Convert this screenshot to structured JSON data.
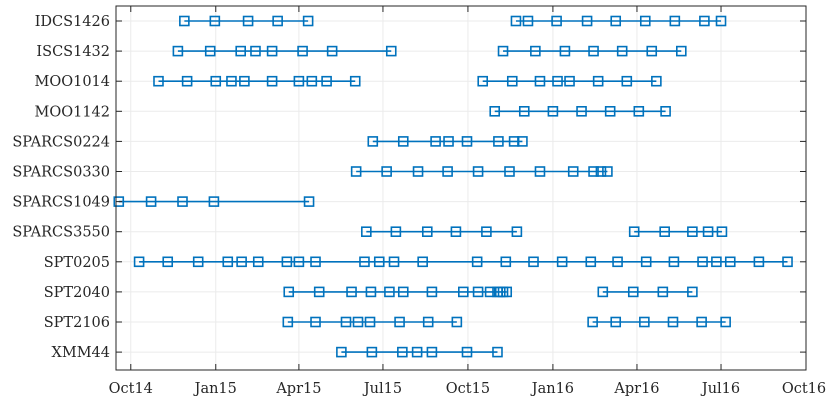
{
  "chart_data": {
    "type": "timeline",
    "title": "",
    "xlabel": "",
    "ylabel": "",
    "x_ticks": [
      "Oct14",
      "Jan15",
      "Apr15",
      "Jul15",
      "Oct15",
      "Jan16",
      "Apr16",
      "Jul16",
      "Oct16"
    ],
    "xlim": [
      "2014-09-15",
      "2016-10-01"
    ],
    "grid": true,
    "line_color": "#0072BD",
    "background_color": "#ffffff",
    "axis_color": "#262626",
    "grid_color": "#ebebeb",
    "marker": "open-square",
    "series": [
      {
        "name": "IDCS1426",
        "segments": [
          [
            "2014-11-28",
            "2014-12-31",
            "2015-02-05",
            "2015-03-09",
            "2015-04-11"
          ],
          [
            "2015-11-22",
            "2015-12-05",
            "2016-01-05",
            "2016-02-07",
            "2016-03-09",
            "2016-04-10",
            "2016-05-12",
            "2016-06-13",
            "2016-07-01"
          ]
        ]
      },
      {
        "name": "ISCS1432",
        "segments": [
          [
            "2014-11-21",
            "2014-12-26",
            "2015-01-28",
            "2015-02-13",
            "2015-03-03",
            "2015-04-05",
            "2015-05-07",
            "2015-07-10"
          ],
          [
            "2015-11-08",
            "2015-12-13",
            "2016-01-14",
            "2016-02-14",
            "2016-03-16",
            "2016-04-17",
            "2016-05-19"
          ]
        ]
      },
      {
        "name": "MOO1014",
        "segments": [
          [
            "2014-10-31",
            "2014-12-01",
            "2015-01-01",
            "2015-01-18",
            "2015-02-01",
            "2015-03-03",
            "2015-04-01",
            "2015-04-15",
            "2015-05-01",
            "2015-06-01"
          ],
          [
            "2015-10-17",
            "2015-11-18",
            "2015-12-18",
            "2016-01-06",
            "2016-01-19",
            "2016-02-19",
            "2016-03-21",
            "2016-04-22"
          ]
        ]
      },
      {
        "name": "MOO1142",
        "segments": [
          [
            "2015-10-30",
            "2015-12-01",
            "2016-01-01",
            "2016-02-01",
            "2016-03-03",
            "2016-04-03",
            "2016-05-02"
          ]
        ]
      },
      {
        "name": "SPARCS0224",
        "segments": [
          [
            "2015-06-20",
            "2015-07-23",
            "2015-08-27",
            "2015-09-10",
            "2015-09-30",
            "2015-11-03",
            "2015-11-20",
            "2015-11-29"
          ]
        ]
      },
      {
        "name": "SPARCS0330",
        "segments": [
          [
            "2015-06-02",
            "2015-07-05",
            "2015-08-08",
            "2015-09-09",
            "2015-10-12",
            "2015-11-15",
            "2015-12-18",
            "2016-01-23",
            "2016-02-14",
            "2016-02-22",
            "2016-02-29"
          ]
        ]
      },
      {
        "name": "SPARCS1049",
        "segments": [
          [
            "2014-09-18",
            "2014-10-23",
            "2014-11-26",
            "2014-12-30",
            "2015-04-12"
          ]
        ]
      },
      {
        "name": "SPARCS3550",
        "segments": [
          [
            "2015-06-13",
            "2015-07-15",
            "2015-08-18",
            "2015-09-18",
            "2015-10-21",
            "2015-11-23"
          ],
          [
            "2016-03-29",
            "2016-05-01",
            "2016-05-31",
            "2016-06-17",
            "2016-07-02"
          ]
        ]
      },
      {
        "name": "SPT0205",
        "segments": [
          [
            "2014-10-10",
            "2014-11-10",
            "2014-12-13",
            "2015-01-14",
            "2015-01-29",
            "2015-02-16",
            "2015-03-19",
            "2015-04-01",
            "2015-04-19",
            "2015-06-11",
            "2015-06-27",
            "2015-07-13",
            "2015-08-13",
            "2015-10-11",
            "2015-11-11",
            "2015-12-11",
            "2016-01-11",
            "2016-02-11",
            "2016-03-11",
            "2016-04-11",
            "2016-05-11",
            "2016-06-11",
            "2016-06-26",
            "2016-07-11",
            "2016-08-11",
            "2016-09-11"
          ]
        ]
      },
      {
        "name": "SPT2040",
        "segments": [
          [
            "2015-03-21",
            "2015-04-23",
            "2015-05-28",
            "2015-06-18",
            "2015-07-08",
            "2015-07-23",
            "2015-08-23",
            "2015-09-26",
            "2015-10-12",
            "2015-10-25",
            "2015-11-02",
            "2015-11-05",
            "2015-11-08",
            "2015-11-12"
          ],
          [
            "2016-02-24",
            "2016-03-28",
            "2016-04-29",
            "2016-05-31"
          ]
        ]
      },
      {
        "name": "SPT2106",
        "segments": [
          [
            "2015-03-20",
            "2015-04-19",
            "2015-05-22",
            "2015-06-04",
            "2015-06-17",
            "2015-07-19",
            "2015-08-19",
            "2015-09-19"
          ],
          [
            "2016-02-13",
            "2016-03-09",
            "2016-04-09",
            "2016-05-10",
            "2016-06-10",
            "2016-07-06"
          ]
        ]
      },
      {
        "name": "XMM44",
        "segments": [
          [
            "2015-05-17",
            "2015-06-19",
            "2015-07-22",
            "2015-08-07",
            "2015-08-23",
            "2015-09-30",
            "2015-11-02"
          ]
        ]
      }
    ]
  }
}
